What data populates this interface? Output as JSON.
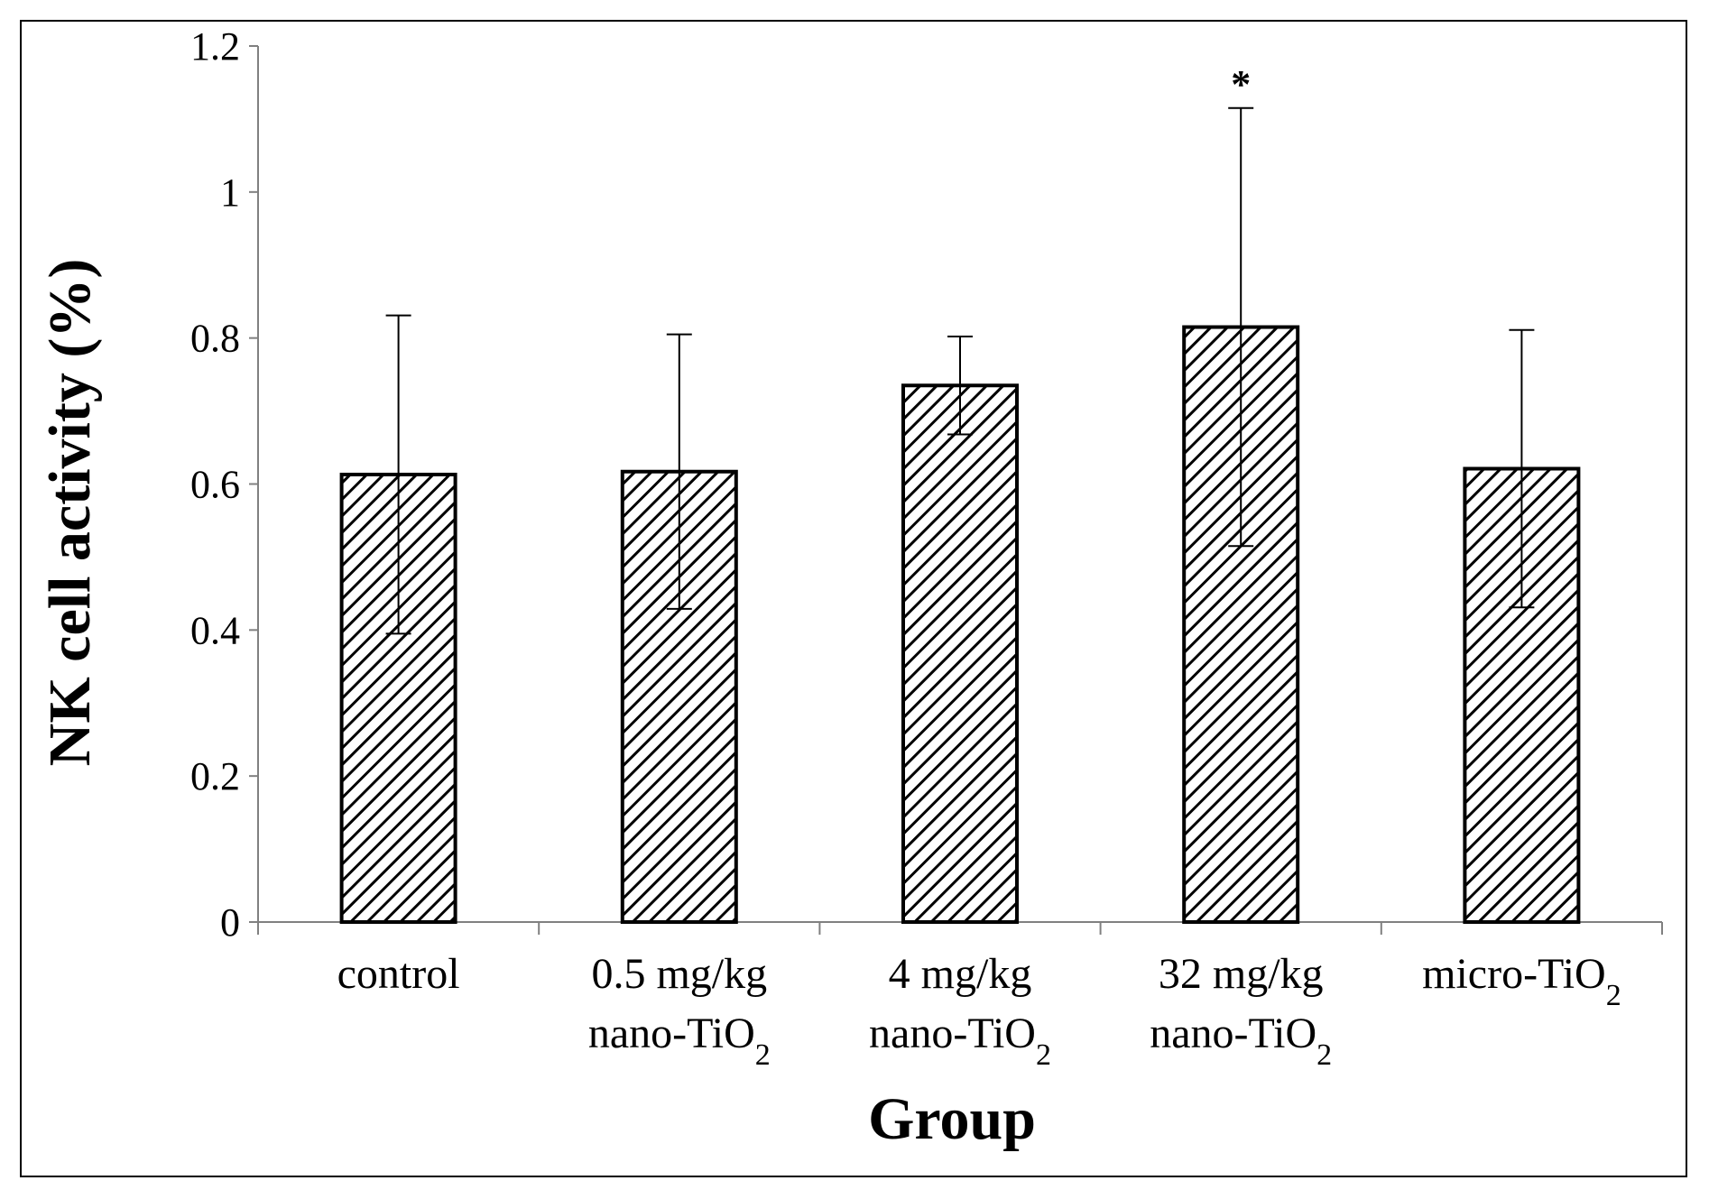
{
  "chart_data": {
    "type": "bar",
    "xlabel": "Group",
    "ylabel": "NK cell activity (%)",
    "ylim": [
      0,
      1.2
    ],
    "yticks": [
      "0",
      "0.2",
      "0.4",
      "0.6",
      "0.8",
      "1",
      "1.2"
    ],
    "ytick_values": [
      0,
      0.2,
      0.4,
      0.6,
      0.8,
      1.0,
      1.2
    ],
    "grid": false,
    "legend": "none",
    "bar_fill": "diagonal-hatch",
    "colors": {
      "bar_stroke": "#000000",
      "hatch": "#000000",
      "background": "#ffffff"
    },
    "categories": [
      {
        "line1": "control",
        "line2": "",
        "sub": ""
      },
      {
        "line1": "0.5 mg/kg",
        "line2": "nano-TiO",
        "sub": "2"
      },
      {
        "line1": "4 mg/kg",
        "line2": "nano-TiO",
        "sub": "2"
      },
      {
        "line1": "32 mg/kg",
        "line2": "nano-TiO",
        "sub": "2"
      },
      {
        "line1": "micro-TiO",
        "line2": "",
        "sub": "2"
      }
    ],
    "values": [
      0.613,
      0.617,
      0.735,
      0.815,
      0.621
    ],
    "error": [
      0.218,
      0.188,
      0.067,
      0.3,
      0.19
    ],
    "annotations": [
      "",
      "",
      "",
      "*",
      ""
    ]
  }
}
